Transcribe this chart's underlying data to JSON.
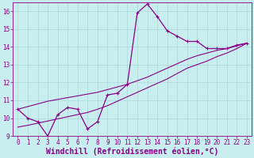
{
  "xlabel": "Windchill (Refroidissement éolien,°C)",
  "background_color": "#c8eef0",
  "grid_color": "#aed8da",
  "line_color": "#880088",
  "x_data": [
    0,
    1,
    2,
    3,
    4,
    5,
    6,
    7,
    8,
    9,
    10,
    11,
    12,
    13,
    14,
    15,
    16,
    17,
    18,
    19,
    20,
    21,
    22,
    23
  ],
  "main_line": [
    10.5,
    10.0,
    9.8,
    9.0,
    10.2,
    10.6,
    10.5,
    9.4,
    9.8,
    11.3,
    11.4,
    11.9,
    15.9,
    16.4,
    15.7,
    14.9,
    14.6,
    14.3,
    14.3,
    13.9,
    13.9,
    13.9,
    14.1,
    14.2
  ],
  "trend_upper": [
    10.5,
    10.65,
    10.8,
    10.95,
    11.05,
    11.15,
    11.25,
    11.35,
    11.45,
    11.6,
    11.75,
    11.9,
    12.1,
    12.3,
    12.55,
    12.8,
    13.05,
    13.3,
    13.5,
    13.65,
    13.8,
    13.9,
    14.05,
    14.2
  ],
  "trend_lower": [
    9.5,
    9.6,
    9.72,
    9.84,
    9.96,
    10.08,
    10.2,
    10.32,
    10.5,
    10.7,
    10.95,
    11.2,
    11.45,
    11.7,
    11.95,
    12.2,
    12.5,
    12.8,
    13.0,
    13.2,
    13.45,
    13.65,
    13.9,
    14.2
  ],
  "ylim": [
    9,
    16.5
  ],
  "xlim": [
    -0.5,
    23.5
  ],
  "yticks": [
    9,
    10,
    11,
    12,
    13,
    14,
    15,
    16
  ],
  "xticks": [
    0,
    1,
    2,
    3,
    4,
    5,
    6,
    7,
    8,
    9,
    10,
    11,
    12,
    13,
    14,
    15,
    16,
    17,
    18,
    19,
    20,
    21,
    22,
    23
  ],
  "font_color": "#880088",
  "tick_fontsize": 5.5,
  "xlabel_fontsize": 7.0
}
